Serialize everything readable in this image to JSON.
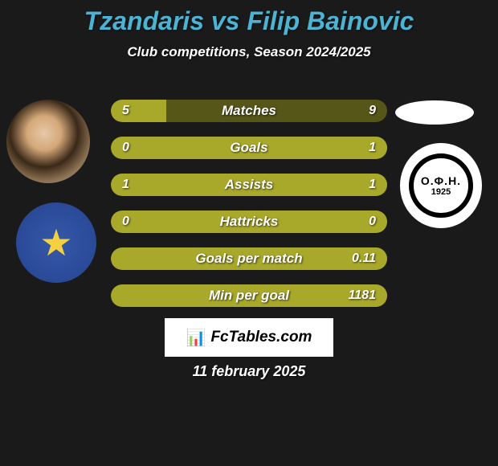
{
  "title": "Tzandaris vs Filip Bainovic",
  "subtitle": "Club competitions, Season 2024/2025",
  "date": "11 february 2025",
  "brand": "FcTables.com",
  "club_right_text": "Ο.Φ.Η.",
  "club_right_year": "1925",
  "colors": {
    "title": "#4bb4d4",
    "subtitle": "#ffffff",
    "background": "#1a1a1a",
    "bar_fill": "#a8a82a",
    "bar_back": "#565618",
    "brand_bg": "#ffffff"
  },
  "bars": [
    {
      "label": "Matches",
      "left": "5",
      "right": "9",
      "left_pct": 20,
      "right_pct": 0
    },
    {
      "label": "Goals",
      "left": "0",
      "right": "1",
      "left_pct": 100,
      "right_pct": 0
    },
    {
      "label": "Assists",
      "left": "1",
      "right": "1",
      "left_pct": 100,
      "right_pct": 0
    },
    {
      "label": "Hattricks",
      "left": "0",
      "right": "0",
      "left_pct": 100,
      "right_pct": 0
    },
    {
      "label": "Goals per match",
      "left": "",
      "right": "0.11",
      "left_pct": 100,
      "right_pct": 0
    },
    {
      "label": "Min per goal",
      "left": "",
      "right": "1181",
      "left_pct": 100,
      "right_pct": 0
    }
  ]
}
